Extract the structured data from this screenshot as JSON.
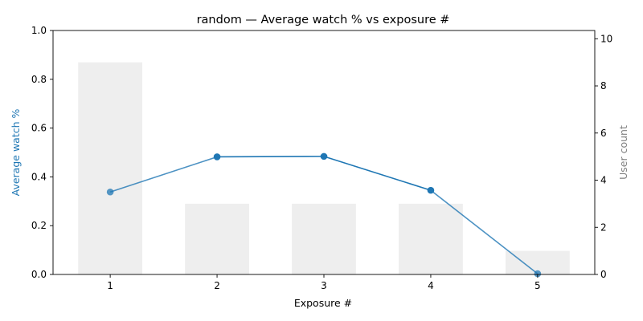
{
  "chart_data": {
    "type": "bar",
    "title": "random — Average watch % vs exposure #",
    "xlabel": "Exposure #",
    "ylabel_left": "Average watch %",
    "ylabel_right": "User count",
    "categories": [
      "1",
      "2",
      "3",
      "4",
      "5"
    ],
    "x_ticks": [
      "1",
      "2",
      "3",
      "4",
      "5"
    ],
    "ylim_left": [
      0,
      1.0
    ],
    "yticks_left": [
      "0.0",
      "0.2",
      "0.4",
      "0.6",
      "0.8",
      "1.0"
    ],
    "ylim_right": [
      0,
      10.35
    ],
    "yticks_right": [
      "0",
      "2",
      "4",
      "6",
      "8",
      "10"
    ],
    "series": [
      {
        "kind": "bar",
        "axis": "right",
        "values": [
          9,
          3,
          3,
          3,
          1
        ]
      },
      {
        "kind": "line",
        "axis": "left",
        "values": [
          0.338,
          0.482,
          0.484,
          0.345,
          0.003
        ]
      }
    ],
    "grid": false,
    "legend": "none",
    "colors": {
      "line": "#1f77b4",
      "bars": "#eeeeee",
      "left_label": "#1f77b4",
      "right_label": "#808080"
    }
  }
}
